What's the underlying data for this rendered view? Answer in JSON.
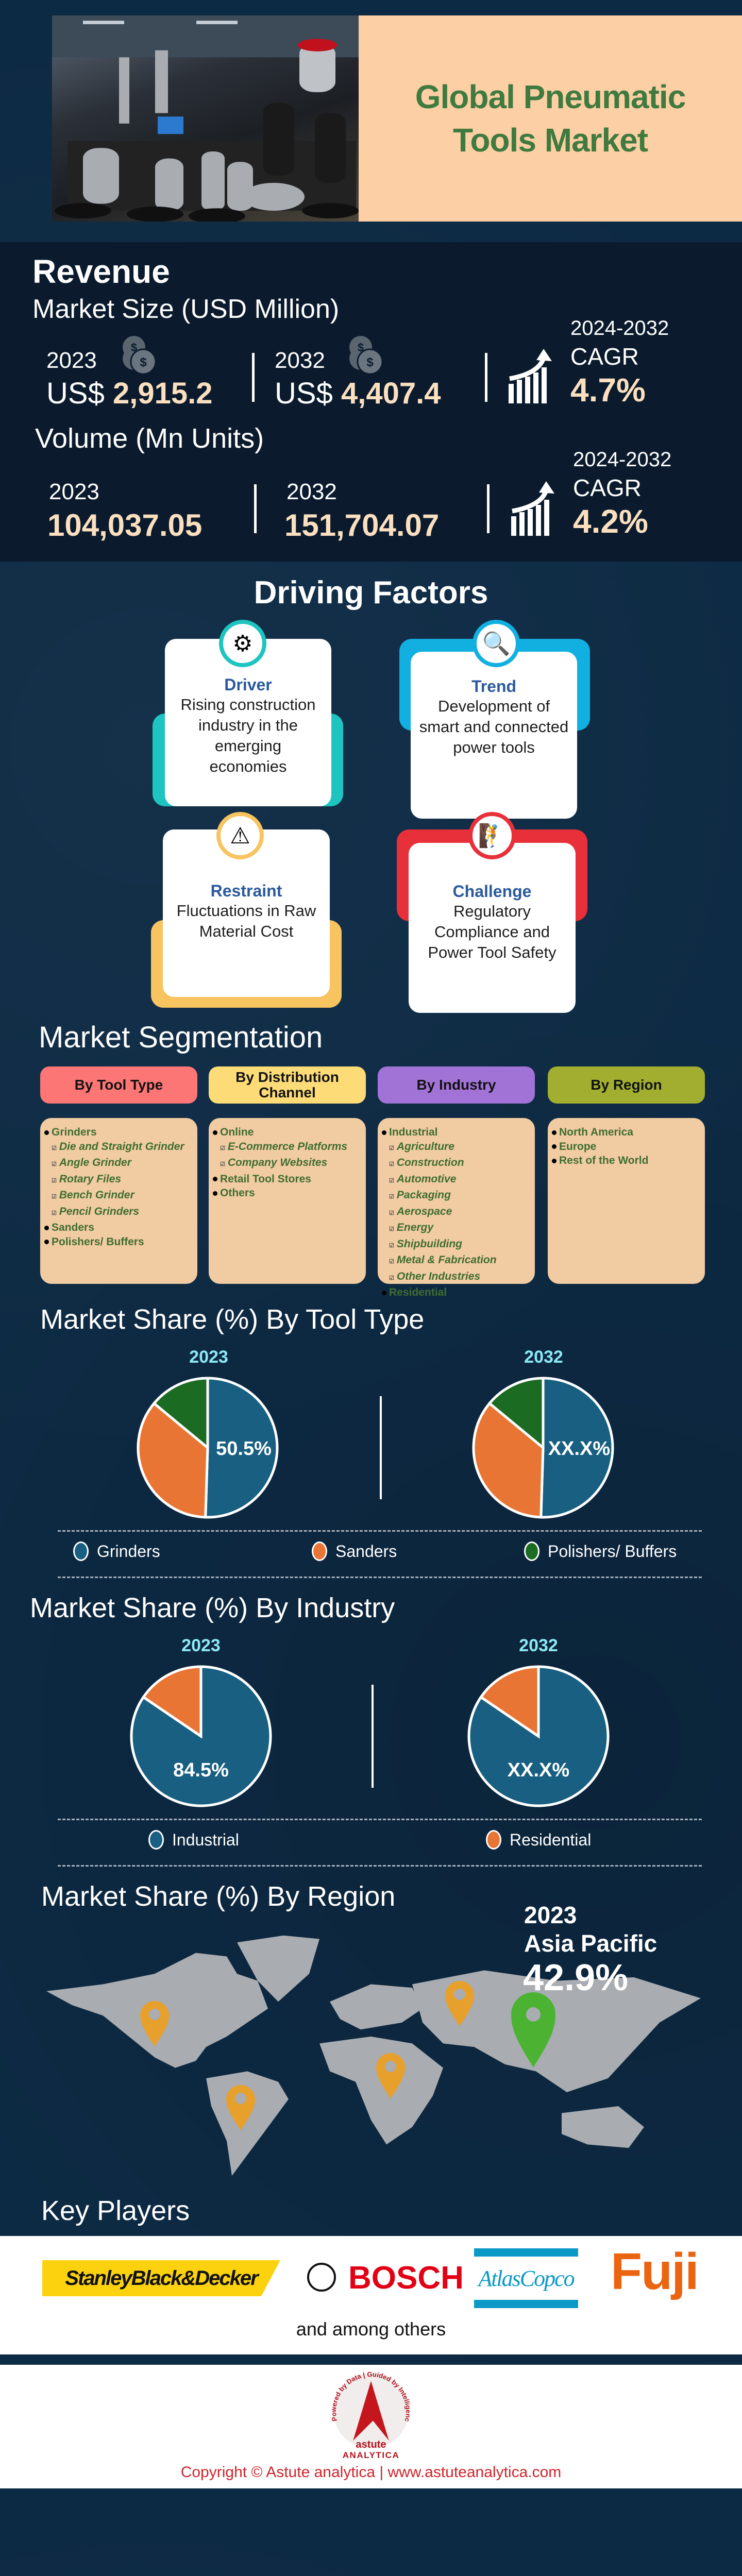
{
  "header": {
    "title": "Global Pneumatic Tools Market",
    "image_alt": "pneumatic tools photo"
  },
  "revenue": {
    "title": "Revenue",
    "market_size": {
      "label": "Market Size (USD Million)",
      "y1": "2023",
      "v1_prefix": "US$",
      "v1": "2,915.2",
      "y2": "2032",
      "v2_prefix": "US$",
      "v2": "4,407.4",
      "cagr_period": "2024-2032",
      "cagr_label": "CAGR",
      "cagr": "4.7%"
    },
    "volume": {
      "label": "Volume (Mn Units)",
      "y1": "2023",
      "v1": "104,037.05",
      "y2": "2032",
      "v2": "151,704.07",
      "cagr_period": "2024-2032",
      "cagr_label": "CAGR",
      "cagr": "4.2%"
    }
  },
  "driving_factors": {
    "title": "Driving Factors",
    "cards": [
      {
        "title": "Driver",
        "text": "Rising construction industry in the emerging economies",
        "color": "#1ec4c0",
        "icon": "market-factors-icon"
      },
      {
        "title": "Trend",
        "text": "Development of smart and connected power tools",
        "color": "#12b0e0",
        "icon": "trend-search-icon"
      },
      {
        "title": "Restraint",
        "text": "Fluctuations in Raw Material Cost",
        "color": "#f8c460",
        "icon": "warning-icon"
      },
      {
        "title": "Challenge",
        "text": "Regulatory Compliance and Power Tool Safety",
        "color": "#e8303a",
        "icon": "climber-gear-icon"
      }
    ]
  },
  "segmentation": {
    "title": "Market Segmentation",
    "columns": [
      {
        "header": "By Tool Type",
        "color": "#fd7676",
        "items": [
          {
            "text": "Grinders",
            "level": 1
          },
          {
            "text": "Die and Straight Grinder",
            "level": 2
          },
          {
            "text": "Angle Grinder",
            "level": 2
          },
          {
            "text": "Rotary Files",
            "level": 2
          },
          {
            "text": "Bench Grinder",
            "level": 2
          },
          {
            "text": "Pencil Grinders",
            "level": 2
          },
          {
            "text": "Sanders",
            "level": 1
          },
          {
            "text": "Polishers/ Buffers",
            "level": 1
          }
        ]
      },
      {
        "header": "By Distribution Channel",
        "color": "#fddc78",
        "items": [
          {
            "text": "Online",
            "level": 1
          },
          {
            "text": "E-Commerce Platforms",
            "level": 2
          },
          {
            "text": "Company Websites",
            "level": 2
          },
          {
            "text": "Retail Tool Stores",
            "level": 1
          },
          {
            "text": "Others",
            "level": 1
          }
        ]
      },
      {
        "header": "By Industry",
        "color": "#a173d6",
        "items": [
          {
            "text": "Industrial",
            "level": 1
          },
          {
            "text": "Agriculture",
            "level": 2
          },
          {
            "text": "Construction",
            "level": 2
          },
          {
            "text": "Automotive",
            "level": 2
          },
          {
            "text": "Packaging",
            "level": 2
          },
          {
            "text": "Aerospace",
            "level": 2
          },
          {
            "text": "Energy",
            "level": 2
          },
          {
            "text": "Shipbuilding",
            "level": 2
          },
          {
            "text": "Metal & Fabrication",
            "level": 2
          },
          {
            "text": "Other Industries",
            "level": 2
          },
          {
            "text": "Residential",
            "level": 1
          }
        ]
      },
      {
        "header": "By Region",
        "color": "#a2ae2f",
        "items": [
          {
            "text": "North America",
            "level": 1
          },
          {
            "text": "Europe",
            "level": 1
          },
          {
            "text": "Rest of the World",
            "level": 1
          }
        ]
      }
    ]
  },
  "chart_data": [
    {
      "type": "pie",
      "title": "Market Share (%) By Tool Type",
      "categories": [
        "Grinders",
        "Sanders",
        "Polishers/ Buffers"
      ],
      "colors": [
        "#185f82",
        "#e97535",
        "#1c6b23"
      ],
      "series": [
        {
          "name": "2023",
          "values": [
            50.5,
            35.5,
            14.0
          ],
          "label": "50.5%"
        },
        {
          "name": "2032",
          "values": [
            50.5,
            35.5,
            14.0
          ],
          "label": "XX.X%"
        }
      ]
    },
    {
      "type": "pie",
      "title": "Market Share (%) By Industry",
      "categories": [
        "Industrial",
        "Residential"
      ],
      "colors": [
        "#185f82",
        "#e97535"
      ],
      "series": [
        {
          "name": "2023",
          "values": [
            84.5,
            15.5
          ],
          "label": "84.5%"
        },
        {
          "name": "2032",
          "values": [
            84.5,
            15.5
          ],
          "label": "XX.X%"
        }
      ]
    }
  ],
  "region": {
    "title": "Market Share (%) By Region",
    "year": "2023",
    "leader": "Asia Pacific",
    "share": "42.9%",
    "pin_color": "#e8a02c",
    "leader_pin_color": "#4cb332"
  },
  "key_players": {
    "title": "Key Players",
    "logos": [
      "StanleyBlack&Decker",
      "BOSCH",
      "AtlasCopco",
      "Fuji"
    ],
    "footnote": "and among others"
  },
  "footer": {
    "logo_ring_text": "Powered by Data | Guided by Intelligence",
    "logo_word1": "astute",
    "logo_word2": "ANALYTICA",
    "copyright": "Copyright © Astute analytica | www.astuteanalytica.com"
  }
}
